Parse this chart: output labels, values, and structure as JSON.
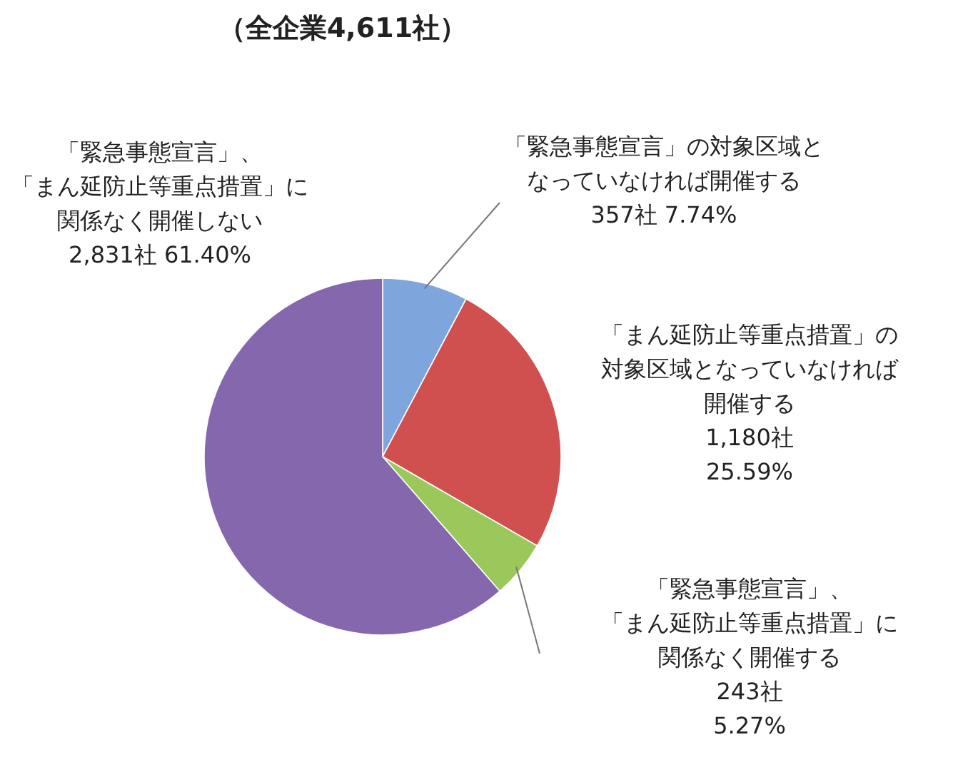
{
  "chart_data": {
    "type": "pie",
    "title": "（全企業4,611社）",
    "categories": [
      "「緊急事態宣言」の対象区域となっていなければ開催する",
      "「まん延防止等重点措置」の対象区域となっていなければ開催する",
      "「緊急事態宣言」、「まん延防止等重点措置」に関係なく開催する",
      "「緊急事態宣言」、「まん延防止等重点措置」に関係なく開催しない"
    ],
    "values": [
      357,
      1180,
      243,
      2831
    ],
    "value_labels": [
      "357社 7.74%",
      "1,180社\n25.59%",
      "243社\n5.27%",
      "2,831社 61.40%"
    ],
    "colors": [
      "#7ea6dc",
      "#d0504f",
      "#9bc85a",
      "#8567ad"
    ],
    "legend": false
  }
}
